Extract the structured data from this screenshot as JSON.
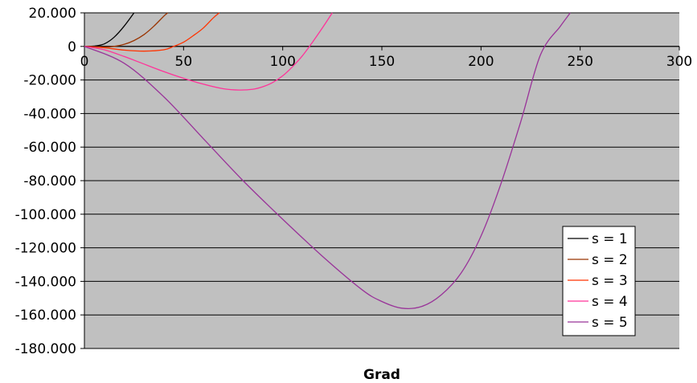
{
  "chart_data": {
    "type": "line",
    "title": "",
    "xlabel": "Grad",
    "ylabel": "",
    "xlim": [
      0,
      300
    ],
    "ylim": [
      -180000,
      20000
    ],
    "x_ticks": [
      0,
      50,
      100,
      150,
      200,
      250,
      300
    ],
    "x_tick_labels": [
      "0",
      "50",
      "100",
      "150",
      "200",
      "250",
      "300"
    ],
    "y_ticks": [
      20000,
      0,
      -20000,
      -40000,
      -60000,
      -80000,
      -100000,
      -120000,
      -140000,
      -160000,
      -180000
    ],
    "y_tick_labels": [
      "20.000",
      "0",
      "-20.000",
      "-40.000",
      "-60.000",
      "-80.000",
      "-100.000",
      "-120.000",
      "-140.000",
      "-160.000",
      "-180.000"
    ],
    "grid": "horizontal",
    "plot_background": "#c0c0c0",
    "legend_position": "right",
    "series": [
      {
        "name": "s = 1",
        "color": "#000000",
        "x": [
          0,
          5,
          10,
          15,
          20,
          25
        ],
        "y": [
          0,
          200,
          1500,
          5500,
          12000,
          20000
        ]
      },
      {
        "name": "s = 2",
        "color": "#993300",
        "x": [
          0,
          5,
          10,
          15,
          20,
          25,
          30,
          35,
          40,
          42
        ],
        "y": [
          0,
          -200,
          -400,
          0,
          1200,
          3500,
          7000,
          12000,
          18000,
          20000
        ]
      },
      {
        "name": "s = 3",
        "color": "#ff3300",
        "x": [
          0,
          10,
          20,
          30,
          40,
          45,
          50,
          55,
          60,
          65,
          68
        ],
        "y": [
          0,
          -800,
          -2200,
          -2800,
          -2000,
          0,
          2500,
          6500,
          11000,
          17000,
          20000
        ]
      },
      {
        "name": "s = 4",
        "color": "#ff3399",
        "x": [
          0,
          10,
          20,
          30,
          40,
          50,
          60,
          70,
          78,
          85,
          90,
          95,
          100,
          105,
          110,
          115,
          120,
          125
        ],
        "y": [
          0,
          -2000,
          -6000,
          -10500,
          -15000,
          -19000,
          -22500,
          -25200,
          -26000,
          -25500,
          -24000,
          -21500,
          -17500,
          -12000,
          -5500,
          2500,
          11000,
          20000
        ]
      },
      {
        "name": "s = 5",
        "color": "#993399",
        "x": [
          0,
          20,
          40,
          60,
          80,
          100,
          120,
          140,
          150,
          160,
          170,
          180,
          190,
          200,
          210,
          220,
          230,
          240,
          245
        ],
        "y": [
          0,
          -10000,
          -30000,
          -55000,
          -80000,
          -103000,
          -125000,
          -145000,
          -152000,
          -156000,
          -155000,
          -148000,
          -135000,
          -113000,
          -82000,
          -45000,
          -5000,
          12000,
          20000
        ]
      }
    ]
  }
}
